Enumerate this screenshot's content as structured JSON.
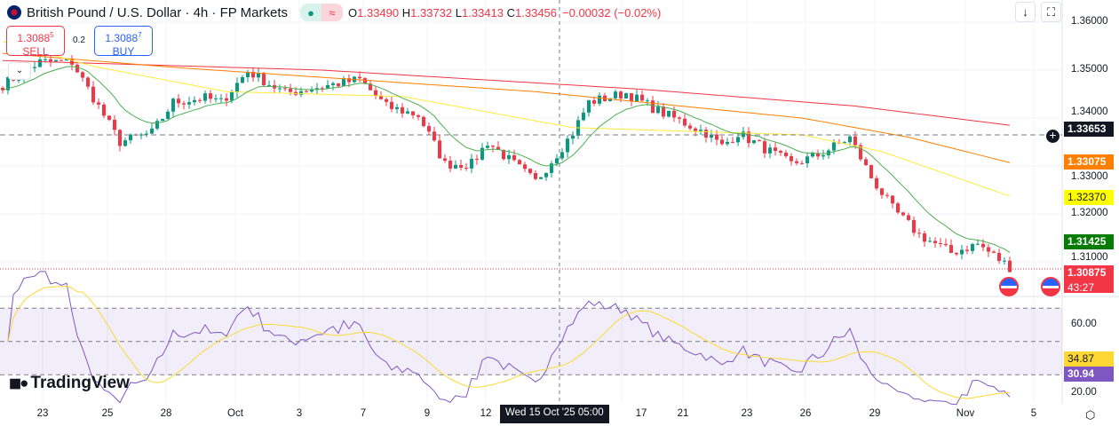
{
  "header": {
    "title": "British Pound / U.S. Dollar · 4h · FP Markets",
    "ohlc": [
      {
        "k": "O",
        "v": "1.33490"
      },
      {
        "k": "H",
        "v": "1.33732"
      },
      {
        "k": "L",
        "v": "1.33413"
      },
      {
        "k": "C",
        "v": "1.33456"
      }
    ],
    "change": "−0.00032 (−0.02%)"
  },
  "trade": {
    "sell_price": "1.3088",
    "sell_sup": "5",
    "sell_label": "SELL",
    "spread": "0.2",
    "buy_price": "1.3088",
    "buy_sup": "7",
    "buy_label": "BUY"
  },
  "toolbar": {
    "scroll_icon": "arrow-down-icon",
    "fullscreen_icon": "fullscreen-icon"
  },
  "price_axis": [
    "1.36000",
    "1.35000",
    "1.34000",
    "1.33000",
    "1.32000",
    "1.31000"
  ],
  "rsi_axis": [
    "60.00",
    "20.00"
  ],
  "tags": {
    "crosshair": "1.33653",
    "orange": "1.33075",
    "yellow": "1.32370",
    "green": "1.31425",
    "last": "1.30875",
    "countdown": "43:27",
    "rsi_ma": "34.87",
    "rsi": "30.94"
  },
  "colors": {
    "up": "#089981",
    "down": "#f23645",
    "ma_red": "#f23645",
    "ma_orange": "#ff7f00",
    "ma_yellow": "#ffeb3b",
    "ma_green": "#4caf50",
    "rsi": "#7e57c2",
    "rsi_ma": "#fdd835"
  },
  "x_axis": [
    "23",
    "25",
    "28",
    "Oct",
    "3",
    "7",
    "9",
    "12",
    "17",
    "21",
    "23",
    "26",
    "29",
    "Nov",
    "5"
  ],
  "crosshair_label": "Wed 15 Oct '25  05:00",
  "logo": "TradingView",
  "chart_data": {
    "type": "candlestick",
    "symbol": "GBPUSD",
    "timeframe": "4h",
    "close_path": [
      [
        0,
        1.3469
      ],
      [
        7,
        1.3517
      ],
      [
        13,
        1.3517
      ],
      [
        16,
        1.3461
      ],
      [
        22,
        1.335
      ],
      [
        28,
        1.3369
      ],
      [
        32,
        1.3433
      ],
      [
        38,
        1.3442
      ],
      [
        41,
        1.3433
      ],
      [
        46,
        1.3498
      ],
      [
        53,
        1.3452
      ],
      [
        67,
        1.348
      ],
      [
        72,
        1.3424
      ],
      [
        78,
        1.3406
      ],
      [
        83,
        1.3304
      ],
      [
        88,
        1.3304
      ],
      [
        91,
        1.335
      ],
      [
        100,
        1.3267
      ],
      [
        107,
        1.3369
      ],
      [
        110,
        1.3433
      ],
      [
        117,
        1.3452
      ],
      [
        123,
        1.3415
      ],
      [
        132,
        1.3369
      ],
      [
        135,
        1.3341
      ],
      [
        138,
        1.3369
      ],
      [
        148,
        1.3304
      ],
      [
        153,
        1.3322
      ],
      [
        159,
        1.3359
      ],
      [
        163,
        1.3276
      ],
      [
        167,
        1.3211
      ],
      [
        172,
        1.3156
      ],
      [
        178,
        1.3119
      ],
      [
        183,
        1.3137
      ],
      [
        189,
        1.3089
      ]
    ],
    "ma_red": [
      [
        0,
        1.352
      ],
      [
        60,
        1.35
      ],
      [
        120,
        1.346
      ],
      [
        160,
        1.3425
      ],
      [
        189,
        1.3385
      ]
    ],
    "ma_orange": [
      [
        0,
        1.3535
      ],
      [
        33,
        1.3505
      ],
      [
        100,
        1.3455
      ],
      [
        150,
        1.34
      ],
      [
        170,
        1.336
      ],
      [
        189,
        1.3307
      ]
    ],
    "ma_yellow": [
      [
        0,
        1.356
      ],
      [
        17,
        1.3508
      ],
      [
        42,
        1.3455
      ],
      [
        75,
        1.3445
      ],
      [
        107,
        1.338
      ],
      [
        150,
        1.3365
      ],
      [
        165,
        1.333
      ],
      [
        189,
        1.3237
      ]
    ],
    "rsi_levels": [
      70,
      50,
      30
    ]
  }
}
